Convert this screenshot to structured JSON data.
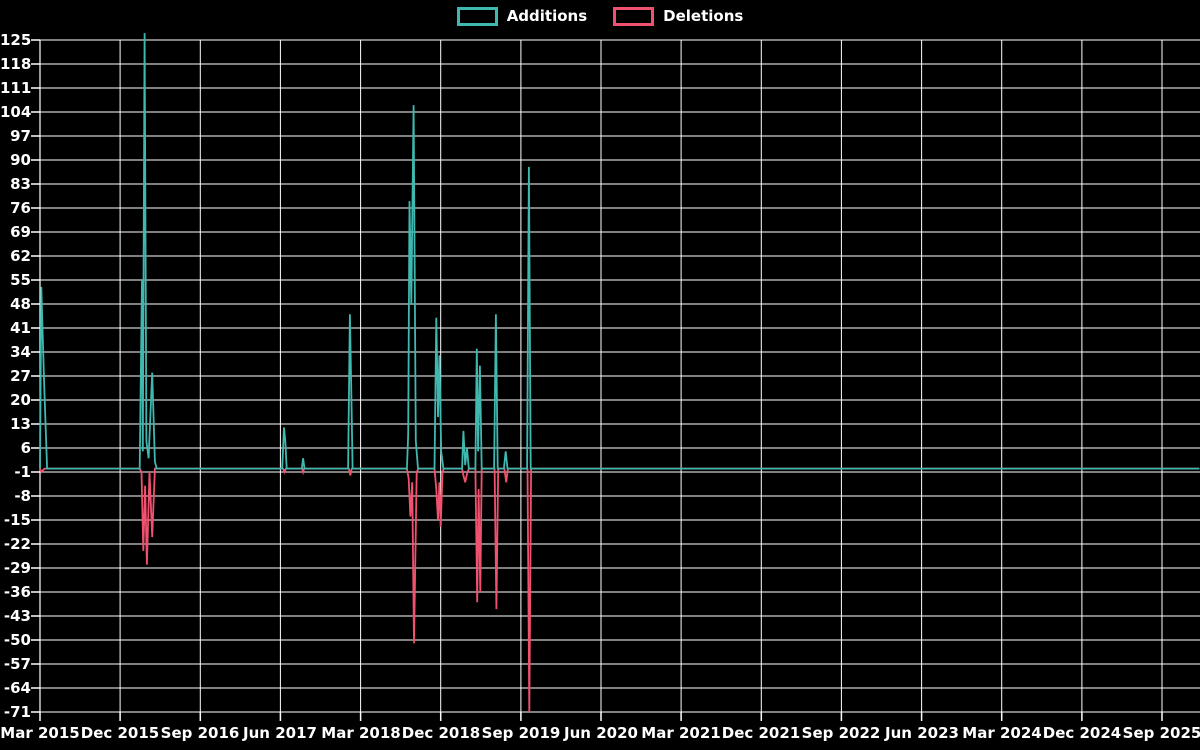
{
  "background_color": "#000000",
  "text_color": "#ffffff",
  "grid_color": "#ffffff",
  "legend": {
    "position": "top-center",
    "items": [
      {
        "label": "Additions",
        "color": "#3fb8b0"
      },
      {
        "label": "Deletions",
        "color": "#f0516f"
      }
    ]
  },
  "chart_data": {
    "type": "line",
    "title": "",
    "grid": true,
    "legend_position": "top-center",
    "x_axis": {
      "label": "",
      "tick_labels": [
        "Mar 2015",
        "Dec 2015",
        "Sep 2016",
        "Jun 2017",
        "Mar 2018",
        "Dec 2018",
        "Sep 2019",
        "Jun 2020",
        "Mar 2021",
        "Dec 2021",
        "Sep 2022",
        "Jun 2023",
        "Mar 2024",
        "Dec 2024",
        "Sep 2025"
      ],
      "months_per_tick": 9,
      "unit": "months since Mar 2015",
      "range_months": [
        0,
        130.2
      ]
    },
    "y_axis": {
      "label": "",
      "ticks": [
        125,
        118,
        111,
        104,
        97,
        90,
        83,
        76,
        69,
        62,
        55,
        48,
        41,
        34,
        27,
        20,
        13,
        6,
        -1,
        -8,
        -15,
        -22,
        -29,
        -36,
        -43,
        -50,
        -57,
        -64,
        -71
      ],
      "tick_step": 7,
      "range": [
        -71,
        125
      ]
    },
    "series": [
      {
        "name": "Additions",
        "color": "#3fb8b0",
        "points": [
          [
            0,
            0
          ],
          [
            0.15,
            53
          ],
          [
            0.45,
            26
          ],
          [
            0.8,
            0
          ],
          [
            11.2,
            0
          ],
          [
            11.45,
            55
          ],
          [
            11.55,
            5
          ],
          [
            11.75,
            127
          ],
          [
            11.95,
            8
          ],
          [
            12.2,
            3
          ],
          [
            12.6,
            28
          ],
          [
            12.9,
            2
          ],
          [
            13.1,
            0
          ],
          [
            27.2,
            0
          ],
          [
            27.4,
            12
          ],
          [
            27.55,
            8
          ],
          [
            27.7,
            0
          ],
          [
            29.4,
            0
          ],
          [
            29.55,
            3
          ],
          [
            29.7,
            0
          ],
          [
            34.6,
            0
          ],
          [
            34.8,
            45
          ],
          [
            34.95,
            24
          ],
          [
            35.1,
            0
          ],
          [
            41.2,
            0
          ],
          [
            41.35,
            10
          ],
          [
            41.5,
            78
          ],
          [
            41.7,
            48
          ],
          [
            41.95,
            106
          ],
          [
            42.2,
            8
          ],
          [
            42.45,
            0
          ],
          [
            44.3,
            0
          ],
          [
            44.5,
            44
          ],
          [
            44.7,
            15
          ],
          [
            44.85,
            33
          ],
          [
            45.05,
            5
          ],
          [
            45.3,
            0
          ],
          [
            47.4,
            0
          ],
          [
            47.55,
            11
          ],
          [
            47.75,
            1
          ],
          [
            47.95,
            6
          ],
          [
            48.15,
            0
          ],
          [
            48.9,
            0
          ],
          [
            49.05,
            35
          ],
          [
            49.2,
            5
          ],
          [
            49.4,
            30
          ],
          [
            49.6,
            0
          ],
          [
            51.0,
            0
          ],
          [
            51.2,
            45
          ],
          [
            51.4,
            0
          ],
          [
            52.1,
            0
          ],
          [
            52.3,
            5
          ],
          [
            52.5,
            0
          ],
          [
            54.7,
            0
          ],
          [
            54.9,
            88
          ],
          [
            55.1,
            0
          ],
          [
            130.2,
            0
          ]
        ]
      },
      {
        "name": "Deletions",
        "color": "#f0516f",
        "points": [
          [
            0,
            0
          ],
          [
            0.15,
            -1
          ],
          [
            0.5,
            0
          ],
          [
            11.2,
            0
          ],
          [
            11.4,
            -1
          ],
          [
            11.6,
            -24
          ],
          [
            11.8,
            -5
          ],
          [
            12.0,
            -28
          ],
          [
            12.3,
            -1
          ],
          [
            12.6,
            -20
          ],
          [
            12.9,
            0
          ],
          [
            27.3,
            0
          ],
          [
            27.45,
            -1
          ],
          [
            27.6,
            0
          ],
          [
            29.45,
            0
          ],
          [
            29.55,
            -1
          ],
          [
            29.65,
            0
          ],
          [
            34.7,
            0
          ],
          [
            34.85,
            -2
          ],
          [
            35.0,
            0
          ],
          [
            41.2,
            0
          ],
          [
            41.4,
            -3
          ],
          [
            41.6,
            -14
          ],
          [
            41.8,
            -4
          ],
          [
            42.0,
            -51
          ],
          [
            42.3,
            -1
          ],
          [
            42.5,
            0
          ],
          [
            44.3,
            0
          ],
          [
            44.5,
            -6
          ],
          [
            44.7,
            -15
          ],
          [
            44.85,
            -4
          ],
          [
            45.0,
            -17
          ],
          [
            45.2,
            -1
          ],
          [
            45.35,
            0
          ],
          [
            47.4,
            0
          ],
          [
            47.55,
            -2
          ],
          [
            47.75,
            -4
          ],
          [
            48.0,
            -1
          ],
          [
            48.2,
            0
          ],
          [
            48.9,
            0
          ],
          [
            49.1,
            -39
          ],
          [
            49.25,
            -6
          ],
          [
            49.45,
            -36
          ],
          [
            49.6,
            0
          ],
          [
            51.05,
            0
          ],
          [
            51.25,
            -41
          ],
          [
            51.45,
            0
          ],
          [
            52.15,
            0
          ],
          [
            52.35,
            -4
          ],
          [
            52.55,
            0
          ],
          [
            54.75,
            0
          ],
          [
            54.95,
            -71
          ],
          [
            55.15,
            0
          ],
          [
            130.2,
            0
          ]
        ]
      }
    ]
  }
}
